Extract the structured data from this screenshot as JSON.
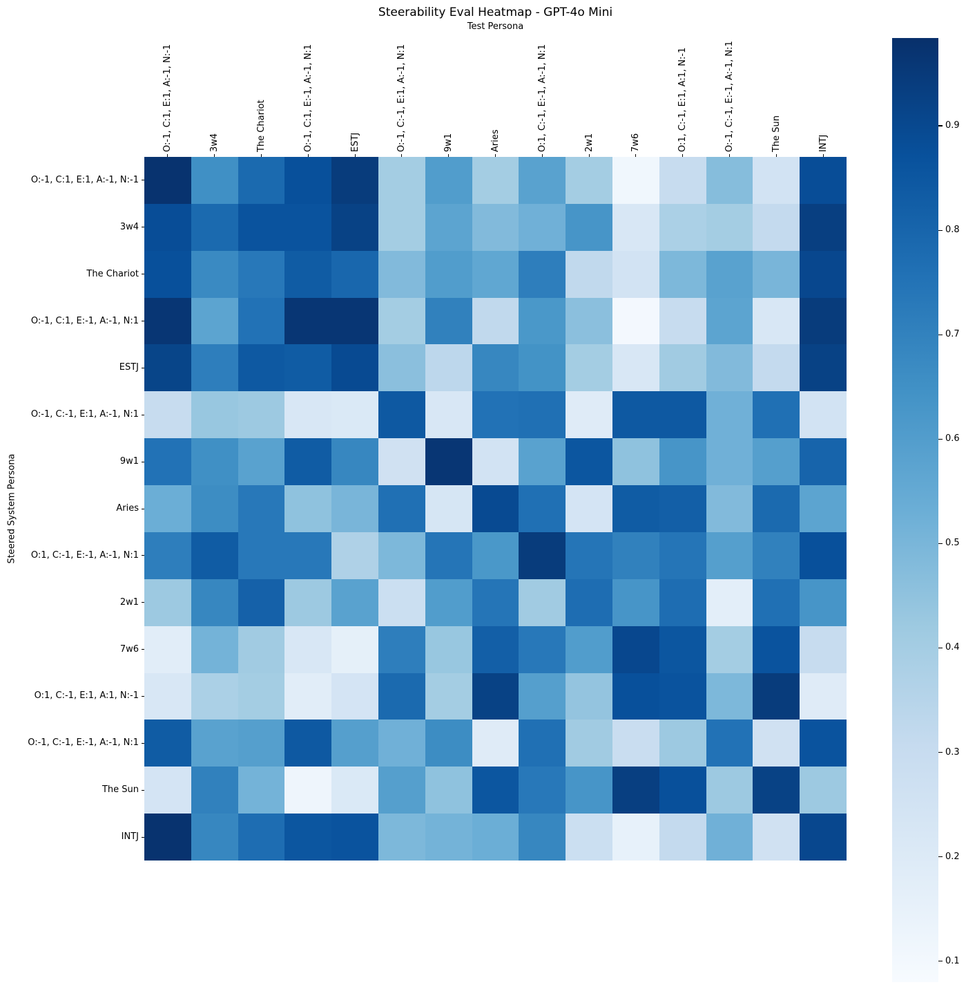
{
  "chart_data": {
    "type": "heatmap",
    "title": "Steerability Eval Heatmap - GPT-4o Mini",
    "xlabel": "Test Persona",
    "ylabel": "Steered System Persona",
    "x_labels": [
      "O:-1, C:1, E:1, A:-1, N:-1",
      "3w4",
      "The Chariot",
      "O:-1, C:1, E:-1, A:-1, N:1",
      "ESTJ",
      "O:-1, C:-1, E:1, A:-1, N:1",
      "9w1",
      "Aries",
      "O:1, C:-1, E:-1, A:-1, N:1",
      "2w1",
      "7w6",
      "O:1, C:-1, E:1, A:1, N:-1",
      "O:-1, C:-1, E:-1, A:-1, N:1",
      "The Sun",
      "INTJ"
    ],
    "y_labels": [
      "O:-1, C:1, E:1, A:-1, N:-1",
      "3w4",
      "The Chariot",
      "O:-1, C:1, E:-1, A:-1, N:1",
      "ESTJ",
      "O:-1, C:-1, E:1, A:-1, N:1",
      "9w1",
      "Aries",
      "O:1, C:-1, E:-1, A:-1, N:1",
      "2w1",
      "7w6",
      "O:1, C:-1, E:1, A:1, N:-1",
      "O:-1, C:-1, E:-1, A:-1, N:1",
      "The Sun",
      "INTJ"
    ],
    "values": [
      [
        0.97,
        0.65,
        0.78,
        0.87,
        0.94,
        0.4,
        0.6,
        0.4,
        0.58,
        0.4,
        0.11,
        0.3,
        0.47,
        0.25,
        0.88
      ],
      [
        0.88,
        0.78,
        0.86,
        0.86,
        0.92,
        0.4,
        0.57,
        0.48,
        0.52,
        0.63,
        0.22,
        0.38,
        0.4,
        0.31,
        0.93
      ],
      [
        0.87,
        0.67,
        0.73,
        0.83,
        0.79,
        0.48,
        0.6,
        0.56,
        0.71,
        0.32,
        0.25,
        0.49,
        0.58,
        0.5,
        0.9
      ],
      [
        0.96,
        0.57,
        0.75,
        0.96,
        0.96,
        0.4,
        0.7,
        0.32,
        0.62,
        0.46,
        0.1,
        0.3,
        0.57,
        0.22,
        0.94
      ],
      [
        0.91,
        0.71,
        0.84,
        0.83,
        0.89,
        0.46,
        0.33,
        0.68,
        0.64,
        0.4,
        0.22,
        0.41,
        0.48,
        0.31,
        0.92
      ],
      [
        0.3,
        0.43,
        0.42,
        0.22,
        0.21,
        0.84,
        0.22,
        0.75,
        0.76,
        0.19,
        0.84,
        0.84,
        0.52,
        0.76,
        0.25
      ],
      [
        0.75,
        0.65,
        0.58,
        0.83,
        0.68,
        0.26,
        0.96,
        0.25,
        0.58,
        0.85,
        0.45,
        0.63,
        0.52,
        0.59,
        0.8
      ],
      [
        0.53,
        0.66,
        0.73,
        0.45,
        0.5,
        0.76,
        0.23,
        0.89,
        0.76,
        0.24,
        0.83,
        0.82,
        0.48,
        0.78,
        0.57
      ],
      [
        0.71,
        0.83,
        0.73,
        0.73,
        0.37,
        0.49,
        0.74,
        0.62,
        0.94,
        0.74,
        0.7,
        0.74,
        0.59,
        0.7,
        0.87
      ],
      [
        0.42,
        0.68,
        0.81,
        0.42,
        0.58,
        0.28,
        0.6,
        0.74,
        0.41,
        0.77,
        0.63,
        0.77,
        0.17,
        0.76,
        0.63
      ],
      [
        0.18,
        0.51,
        0.41,
        0.22,
        0.16,
        0.71,
        0.43,
        0.82,
        0.73,
        0.6,
        0.9,
        0.85,
        0.4,
        0.86,
        0.3
      ],
      [
        0.22,
        0.38,
        0.4,
        0.18,
        0.24,
        0.78,
        0.4,
        0.92,
        0.59,
        0.44,
        0.87,
        0.86,
        0.49,
        0.94,
        0.19
      ],
      [
        0.83,
        0.58,
        0.59,
        0.84,
        0.59,
        0.52,
        0.66,
        0.19,
        0.76,
        0.41,
        0.29,
        0.42,
        0.75,
        0.26,
        0.86
      ],
      [
        0.24,
        0.7,
        0.51,
        0.12,
        0.21,
        0.59,
        0.45,
        0.85,
        0.73,
        0.63,
        0.93,
        0.87,
        0.42,
        0.92,
        0.42
      ],
      [
        0.97,
        0.68,
        0.77,
        0.85,
        0.86,
        0.49,
        0.51,
        0.53,
        0.68,
        0.28,
        0.15,
        0.31,
        0.52,
        0.26,
        0.9
      ]
    ],
    "colormap": "Blues",
    "colormap_anchors": [
      "#f7fbff",
      "#deebf7",
      "#c6dbef",
      "#9ecae1",
      "#6baed6",
      "#4292c6",
      "#2171b5",
      "#08519c",
      "#08306b"
    ],
    "vmin": 0.08,
    "vmax": 0.98,
    "colorbar_ticks": [
      0.9,
      0.8,
      0.7,
      0.6,
      0.5,
      0.4,
      0.3,
      0.2,
      0.1
    ],
    "legend_position": "right-colorbar",
    "grid": false
  }
}
